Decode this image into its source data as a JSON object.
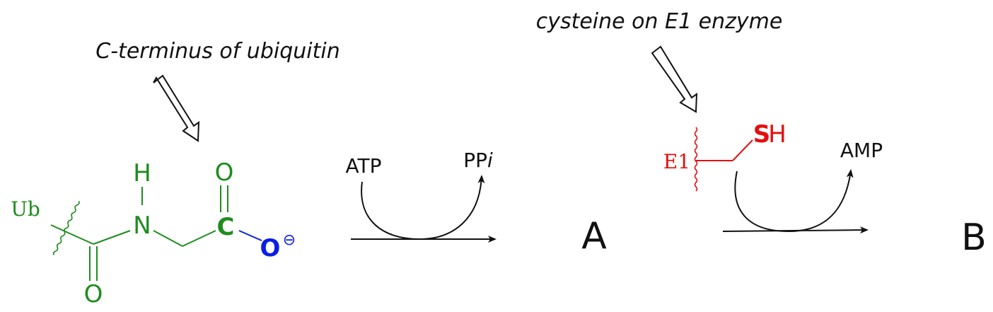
{
  "captions": {
    "ubiquitin": "C-terminus of ubiquitin",
    "cysteine": "cysteine on E1 enzyme"
  },
  "molecule_ub": {
    "ub": "Ub",
    "h": "H",
    "n": "N",
    "o_top": "O",
    "c": "C",
    "o_minus": "O",
    "charge": "⊖",
    "o_bottom": "O"
  },
  "reaction1": {
    "reactant": "ATP",
    "product_main": "PP",
    "product_italic": "i"
  },
  "product_a": "A",
  "molecule_e1": {
    "e1": "E1",
    "s": "S",
    "h": "H"
  },
  "reaction2": {
    "product": "AMP"
  },
  "product_b": "B",
  "colors": {
    "green": "#1e8c1e",
    "blue": "#0a1ee6",
    "red": "#e60f0f",
    "black": "#111111"
  }
}
